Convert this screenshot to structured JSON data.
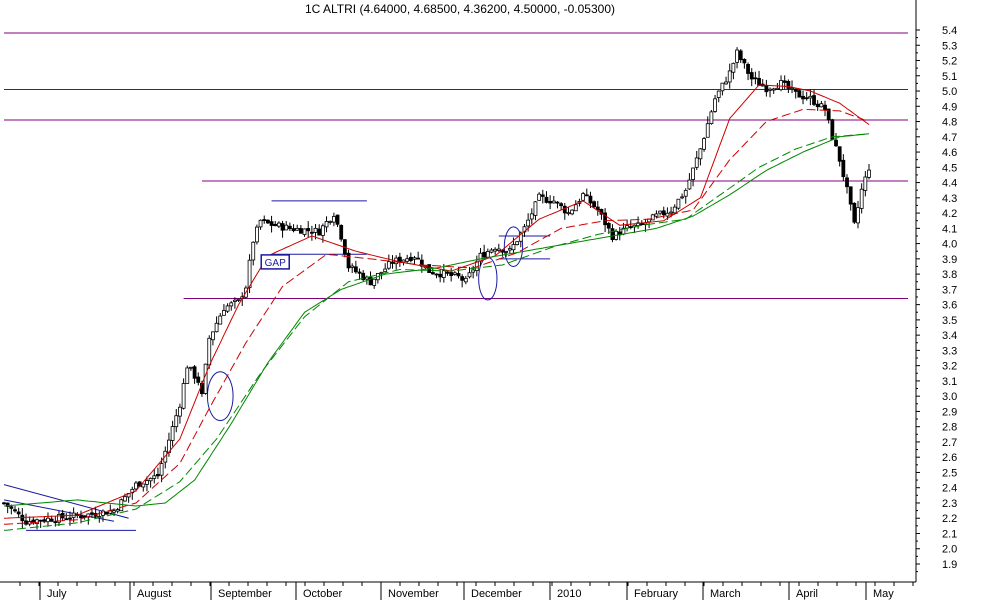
{
  "chart_data": {
    "type": "candlestick",
    "title": "1C ALTRI (4.64000, 4.68500, 4.36200, 4.50000, -0.05300)",
    "xlabel": "",
    "ylabel": "",
    "ylim": [
      1.9,
      5.4
    ],
    "y_ticks": [
      1.9,
      2.0,
      2.1,
      2.2,
      2.3,
      2.4,
      2.5,
      2.6,
      2.7,
      2.8,
      2.9,
      3.0,
      3.1,
      3.2,
      3.3,
      3.4,
      3.5,
      3.6,
      3.7,
      3.8,
      3.9,
      4.0,
      4.1,
      4.2,
      4.3,
      4.4,
      4.5,
      4.6,
      4.7,
      4.8,
      4.9,
      5.0,
      5.1,
      5.2,
      5.3,
      5.4
    ],
    "y_axis_side": "right",
    "grid": false,
    "x_months": [
      "July",
      "August",
      "September",
      "October",
      "November",
      "December",
      "2010",
      "February",
      "March",
      "April",
      "May"
    ],
    "price_path": [
      [
        0,
        2.3
      ],
      [
        6,
        2.18
      ],
      [
        14,
        2.2
      ],
      [
        22,
        2.22
      ],
      [
        30,
        2.25
      ],
      [
        36,
        2.42
      ],
      [
        42,
        2.48
      ],
      [
        48,
        2.95
      ],
      [
        50,
        3.2
      ],
      [
        53,
        3.1
      ],
      [
        54,
        3.0
      ],
      [
        56,
        3.38
      ],
      [
        60,
        3.58
      ],
      [
        64,
        3.62
      ],
      [
        66,
        3.72
      ],
      [
        68,
        4.02
      ],
      [
        70,
        4.15
      ],
      [
        72,
        4.13
      ],
      [
        78,
        4.1
      ],
      [
        86,
        4.08
      ],
      [
        90,
        4.2
      ],
      [
        92,
        4.05
      ],
      [
        94,
        3.85
      ],
      [
        100,
        3.75
      ],
      [
        106,
        3.88
      ],
      [
        112,
        3.92
      ],
      [
        116,
        3.82
      ],
      [
        120,
        3.8
      ],
      [
        124,
        3.78
      ],
      [
        126,
        3.75
      ],
      [
        130,
        3.92
      ],
      [
        134,
        3.98
      ],
      [
        138,
        3.95
      ],
      [
        142,
        4.1
      ],
      [
        146,
        4.3
      ],
      [
        150,
        4.28
      ],
      [
        154,
        4.2
      ],
      [
        158,
        4.32
      ],
      [
        162,
        4.22
      ],
      [
        166,
        4.05
      ],
      [
        170,
        4.1
      ],
      [
        174,
        4.12
      ],
      [
        178,
        4.18
      ],
      [
        182,
        4.22
      ],
      [
        186,
        4.35
      ],
      [
        190,
        4.62
      ],
      [
        194,
        4.95
      ],
      [
        198,
        5.12
      ],
      [
        200,
        5.25
      ],
      [
        204,
        5.08
      ],
      [
        208,
        5.02
      ],
      [
        212,
        5.05
      ],
      [
        216,
        4.98
      ],
      [
        220,
        4.95
      ],
      [
        224,
        4.88
      ],
      [
        226,
        4.7
      ],
      [
        228,
        4.55
      ],
      [
        230,
        4.35
      ],
      [
        232,
        4.12
      ],
      [
        234,
        4.35
      ],
      [
        236,
        4.5
      ]
    ],
    "series": [
      {
        "name": "",
        "color": "#cc0000",
        "dash": "solid",
        "values": [
          [
            0,
            2.2
          ],
          [
            20,
            2.22
          ],
          [
            36,
            2.38
          ],
          [
            48,
            2.72
          ],
          [
            56,
            3.2
          ],
          [
            64,
            3.6
          ],
          [
            72,
            3.92
          ],
          [
            84,
            4.05
          ],
          [
            96,
            3.95
          ],
          [
            108,
            3.88
          ],
          [
            122,
            3.82
          ],
          [
            134,
            3.92
          ],
          [
            146,
            4.16
          ],
          [
            158,
            4.28
          ],
          [
            168,
            4.12
          ],
          [
            180,
            4.15
          ],
          [
            190,
            4.3
          ],
          [
            198,
            4.82
          ],
          [
            206,
            5.04
          ],
          [
            214,
            5.03
          ],
          [
            220,
            5.0
          ],
          [
            228,
            4.92
          ],
          [
            236,
            4.78
          ]
        ]
      },
      {
        "name": "",
        "color": "#cc0000",
        "dash": "dashed",
        "values": [
          [
            0,
            2.16
          ],
          [
            20,
            2.19
          ],
          [
            36,
            2.3
          ],
          [
            48,
            2.56
          ],
          [
            56,
            2.92
          ],
          [
            66,
            3.35
          ],
          [
            76,
            3.72
          ],
          [
            88,
            3.93
          ],
          [
            100,
            3.9
          ],
          [
            114,
            3.86
          ],
          [
            128,
            3.84
          ],
          [
            140,
            3.94
          ],
          [
            152,
            4.1
          ],
          [
            164,
            4.15
          ],
          [
            176,
            4.16
          ],
          [
            188,
            4.22
          ],
          [
            198,
            4.55
          ],
          [
            208,
            4.8
          ],
          [
            218,
            4.88
          ],
          [
            228,
            4.87
          ],
          [
            236,
            4.8
          ]
        ]
      },
      {
        "name": "",
        "color": "#008800",
        "dash": "dashed",
        "values": [
          [
            0,
            2.12
          ],
          [
            20,
            2.17
          ],
          [
            36,
            2.26
          ],
          [
            48,
            2.44
          ],
          [
            58,
            2.72
          ],
          [
            70,
            3.15
          ],
          [
            82,
            3.52
          ],
          [
            94,
            3.75
          ],
          [
            108,
            3.83
          ],
          [
            122,
            3.82
          ],
          [
            136,
            3.86
          ],
          [
            150,
            3.98
          ],
          [
            162,
            4.06
          ],
          [
            174,
            4.12
          ],
          [
            186,
            4.16
          ],
          [
            196,
            4.33
          ],
          [
            206,
            4.5
          ],
          [
            216,
            4.62
          ],
          [
            226,
            4.7
          ],
          [
            236,
            4.72
          ]
        ]
      },
      {
        "name": "",
        "color": "#008800",
        "dash": "solid",
        "values": [
          [
            0,
            2.28
          ],
          [
            20,
            2.32
          ],
          [
            36,
            2.28
          ],
          [
            44,
            2.3
          ],
          [
            52,
            2.45
          ],
          [
            62,
            2.82
          ],
          [
            72,
            3.22
          ],
          [
            82,
            3.55
          ],
          [
            92,
            3.7
          ],
          [
            104,
            3.8
          ],
          [
            118,
            3.84
          ],
          [
            130,
            3.9
          ],
          [
            142,
            3.95
          ],
          [
            154,
            4.0
          ],
          [
            166,
            4.05
          ],
          [
            178,
            4.1
          ],
          [
            188,
            4.18
          ],
          [
            198,
            4.32
          ],
          [
            208,
            4.48
          ],
          [
            218,
            4.6
          ],
          [
            228,
            4.7
          ],
          [
            236,
            4.72
          ]
        ]
      }
    ],
    "horizontal_levels": [
      {
        "value": 5.38,
        "from": 0,
        "to": 236,
        "color": "#800080"
      },
      {
        "value": 5.01,
        "from": 0,
        "to": 236,
        "color": "#800080"
      },
      {
        "value": 4.81,
        "from": 0,
        "to": 236,
        "color": "#800080"
      },
      {
        "value": 4.41,
        "from": 54,
        "to": 236,
        "color": "#800080"
      },
      {
        "value": 3.64,
        "from": 49,
        "to": 236,
        "color": "#800080"
      },
      {
        "value": 2.12,
        "from": 6,
        "to": 36,
        "color": "#1a1aa0"
      },
      {
        "value": 4.28,
        "from": 73,
        "to": 99,
        "color": "#1a1aa0"
      },
      {
        "value": 3.93,
        "from": 73,
        "to": 99,
        "color": "#1a1aa0"
      },
      {
        "value": 4.05,
        "from": 135,
        "to": 149,
        "color": "#1a1aa0"
      },
      {
        "value": 3.9,
        "from": 135,
        "to": 149,
        "color": "#1a1aa0"
      }
    ],
    "trend_lines": [
      {
        "from": [
          0,
          2.42
        ],
        "to": [
          34,
          2.2
        ],
        "color": "#1a1aa0"
      },
      {
        "from": [
          0,
          2.32
        ],
        "to": [
          30,
          2.18
        ],
        "color": "#1a1aa0"
      }
    ],
    "ellipses": [
      {
        "x": 59,
        "y": 3.0,
        "rx": 3.5,
        "ry": 0.16,
        "color": "#1a1aa0"
      },
      {
        "x": 132,
        "y": 3.77,
        "rx": 2.5,
        "ry": 0.14,
        "color": "#1a1aa0"
      },
      {
        "x": 139,
        "y": 3.98,
        "rx": 2.5,
        "ry": 0.13,
        "color": "#1a1aa0"
      }
    ],
    "gap_box": {
      "label": "GAP",
      "x": 74,
      "y": 3.88,
      "color": "#1a1aa0"
    }
  }
}
